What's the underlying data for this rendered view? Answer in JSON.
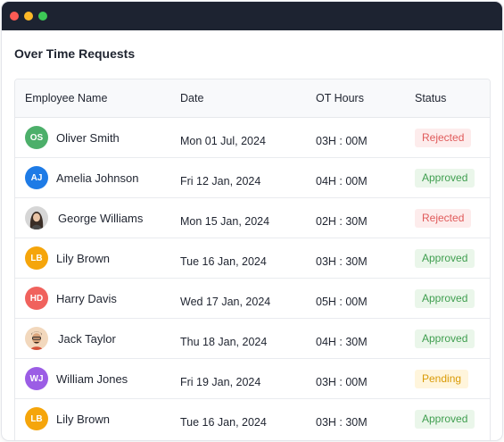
{
  "page": {
    "title": "Over Time Requests"
  },
  "table": {
    "columns": [
      "Employee Name",
      "Date",
      "OT Hours",
      "Status"
    ],
    "rows": [
      {
        "initials": "OS",
        "avatar_color": "#4caf6a",
        "avatar_type": "initials",
        "name": "Oliver Smith",
        "date": "Mon 01 Jul, 2024",
        "hours": "03H : 00M",
        "status": "Rejected"
      },
      {
        "initials": "AJ",
        "avatar_color": "#1e7be6",
        "avatar_type": "initials",
        "name": "Amelia Johnson",
        "date": "Fri 12 Jan, 2024",
        "hours": "04H : 00M",
        "status": "Approved"
      },
      {
        "initials": "",
        "avatar_color": "#d9d9d9",
        "avatar_type": "photo",
        "name": "George Williams",
        "date": "Mon 15 Jan, 2024",
        "hours": "02H : 30M",
        "status": "Rejected"
      },
      {
        "initials": "LB",
        "avatar_color": "#f5a50b",
        "avatar_type": "initials",
        "name": "Lily Brown",
        "date": "Tue 16 Jan, 2024",
        "hours": "03H : 30M",
        "status": "Approved"
      },
      {
        "initials": "HD",
        "avatar_color": "#f0625d",
        "avatar_type": "initials",
        "name": "Harry Davis",
        "date": "Wed 17 Jan, 2024",
        "hours": "05H : 00M",
        "status": "Approved"
      },
      {
        "initials": "",
        "avatar_color": "#f3d6b5",
        "avatar_type": "photo",
        "name": "Jack Taylor",
        "date": "Thu 18 Jan, 2024",
        "hours": "04H : 30M",
        "status": "Approved"
      },
      {
        "initials": "WJ",
        "avatar_color": "#9b5de5",
        "avatar_type": "initials",
        "name": "William Jones",
        "date": "Fri 19 Jan, 2024",
        "hours": "03H : 00M",
        "status": "Pending"
      },
      {
        "initials": "LB",
        "avatar_color": "#f5a50b",
        "avatar_type": "initials",
        "name": "Lily Brown",
        "date": "Tue 16 Jan, 2024",
        "hours": "03H : 30M",
        "status": "Approved"
      }
    ]
  },
  "status_colors": {
    "Rejected": {
      "bg": "#fdecec",
      "fg": "#e05a5a"
    },
    "Approved": {
      "bg": "#eaf6ea",
      "fg": "#3f9e4f"
    },
    "Pending": {
      "bg": "#fff5dc",
      "fg": "#d99a06"
    }
  },
  "window": {
    "controls": [
      {
        "name": "close",
        "color": "#fd5b54"
      },
      {
        "name": "minimize",
        "color": "#fdb827"
      },
      {
        "name": "maximize",
        "color": "#3dc956"
      }
    ]
  }
}
